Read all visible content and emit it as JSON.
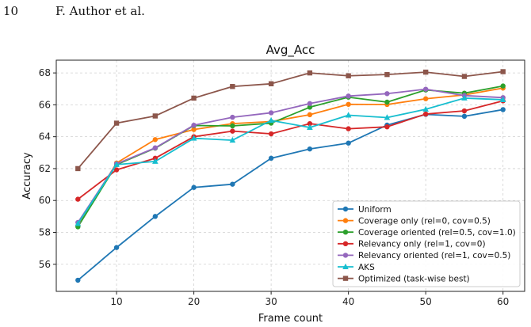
{
  "page": {
    "number": "10",
    "author": "F. Author et al."
  },
  "chart_data": {
    "type": "line",
    "title": "Avg_Acc",
    "xlabel": "Frame count",
    "ylabel": "Accuracy",
    "xlim": [
      2.2,
      62.8
    ],
    "ylim": [
      54.3,
      68.8
    ],
    "xticks": [
      10,
      20,
      30,
      40,
      50,
      60
    ],
    "yticks": [
      56,
      58,
      60,
      62,
      64,
      66,
      68
    ],
    "grid": true,
    "legend_position": "lower-right",
    "x": [
      5,
      10,
      15,
      20,
      25,
      30,
      35,
      40,
      45,
      50,
      55,
      60
    ],
    "series": [
      {
        "name": "Uniform",
        "color": "#1f77b4",
        "marker": "circle",
        "values": [
          55.0,
          57.05,
          59.0,
          60.82,
          61.02,
          62.65,
          63.23,
          63.6,
          64.73,
          65.4,
          65.28,
          65.7
        ]
      },
      {
        "name": "Coverage only (rel=0, cov=0.5)",
        "color": "#ff7f0e",
        "marker": "circle",
        "values": [
          58.4,
          62.35,
          63.82,
          64.45,
          64.82,
          64.95,
          65.38,
          66.03,
          66.02,
          66.38,
          66.62,
          67.05
        ]
      },
      {
        "name": "Coverage oriented (rel=0.5, cov=1.0)",
        "color": "#2ca02c",
        "marker": "circle",
        "values": [
          58.35,
          62.25,
          63.28,
          64.7,
          64.68,
          64.85,
          65.85,
          66.48,
          66.17,
          66.93,
          66.73,
          67.18
        ]
      },
      {
        "name": "Relevancy only (rel=1, cov=0)",
        "color": "#d62728",
        "marker": "circle",
        "values": [
          60.08,
          61.92,
          62.65,
          64.0,
          64.35,
          64.18,
          64.82,
          64.5,
          64.62,
          65.42,
          65.62,
          66.25
        ]
      },
      {
        "name": "Relevancy oriented (rel=1, cov=0.5)",
        "color": "#9467bd",
        "marker": "circle",
        "values": [
          58.62,
          62.3,
          63.3,
          64.72,
          65.22,
          65.5,
          66.08,
          66.55,
          66.7,
          66.98,
          66.58,
          66.45
        ]
      },
      {
        "name": "AKS",
        "color": "#17becf",
        "marker": "triangle",
        "values": [
          58.55,
          62.25,
          62.45,
          63.9,
          63.78,
          65.02,
          64.58,
          65.35,
          65.2,
          65.72,
          66.42,
          66.32
        ]
      },
      {
        "name": "Optimized (task-wise best)",
        "color": "#8c564b",
        "marker": "square",
        "values": [
          62.0,
          64.85,
          65.3,
          66.42,
          67.15,
          67.32,
          68.0,
          67.82,
          67.9,
          68.05,
          67.78,
          68.08
        ]
      }
    ]
  }
}
